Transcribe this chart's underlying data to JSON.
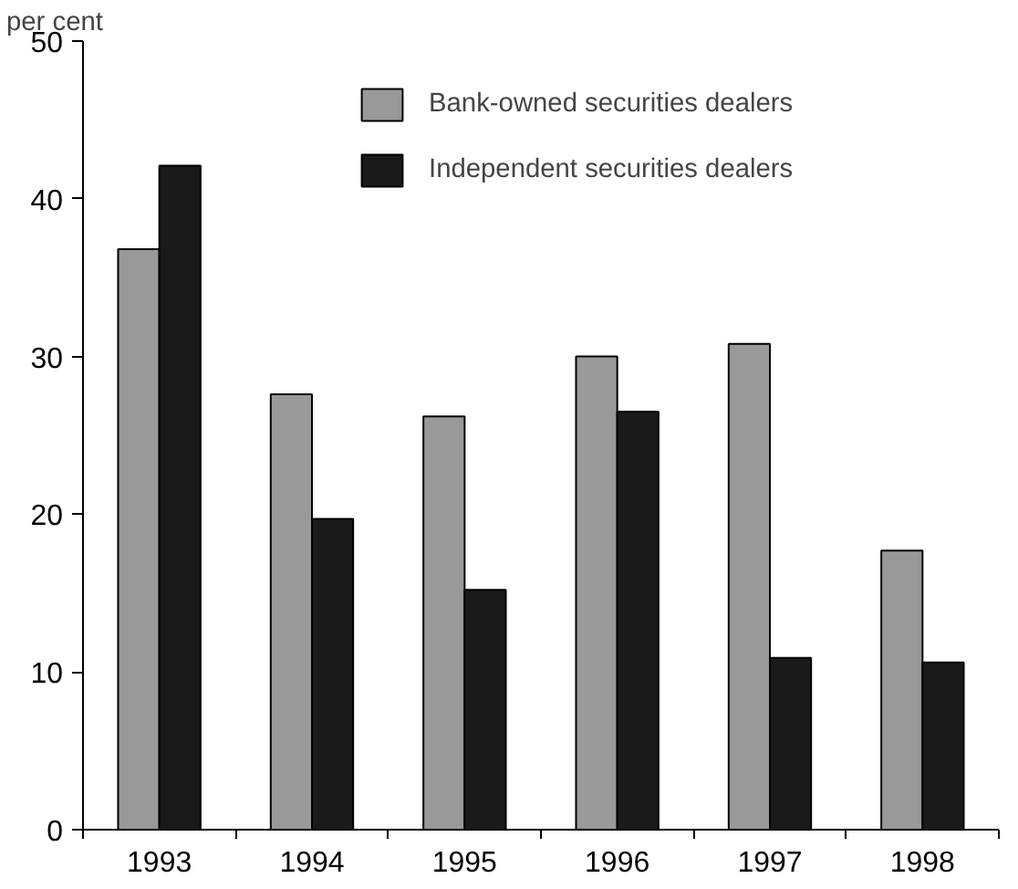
{
  "chart_data": {
    "type": "bar",
    "ylabel": "per cent",
    "categories": [
      "1993",
      "1994",
      "1995",
      "1996",
      "1997",
      "1998"
    ],
    "series": [
      {
        "name": "Bank-owned securities dealers",
        "color": "#999999",
        "values": [
          36.8,
          27.6,
          26.2,
          30.0,
          30.8,
          17.7
        ]
      },
      {
        "name": "Independent securities dealers",
        "color": "#1a1a1a",
        "values": [
          42.1,
          19.7,
          15.2,
          26.5,
          10.9,
          10.6
        ]
      }
    ],
    "ylim": [
      0,
      50
    ],
    "yticks": [
      0,
      10,
      20,
      30,
      40,
      50
    ],
    "grid": false,
    "legend": "top"
  }
}
